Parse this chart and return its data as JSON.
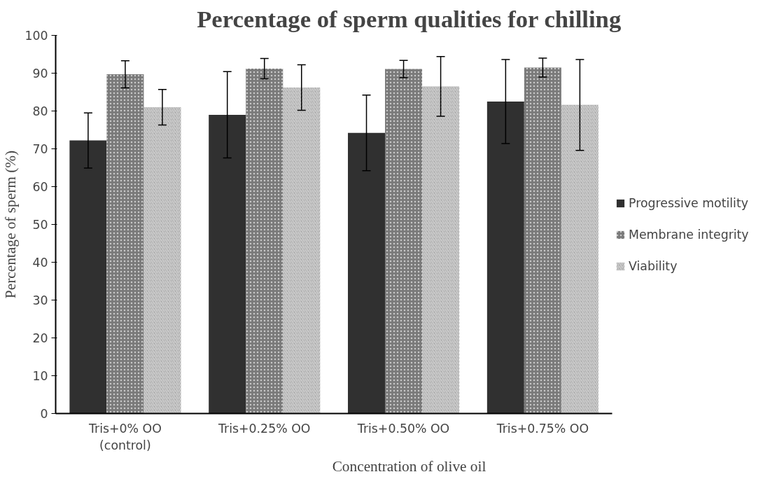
{
  "chart_data": {
    "type": "bar",
    "title": "Percentage of sperm qualities for chilling",
    "xlabel": "Concentration of olive oil",
    "ylabel": "Percentage of sperm (%)",
    "categories": [
      "Tris+0% OO\n(control)",
      "Tris+0.25% OO",
      "Tris+0.50% OO",
      "Tris+0.75% OO"
    ],
    "series": [
      {
        "name": "Progressive motility",
        "color": "#303030",
        "values": [
          72.2,
          79,
          74.2,
          82.5
        ],
        "errors": [
          7.3,
          11.4,
          10,
          11.1
        ]
      },
      {
        "name": "Membrane integrity",
        "color": "#7a7a7a",
        "values": [
          89.7,
          91.2,
          91.1,
          91.5
        ],
        "errors": [
          3.6,
          2.7,
          2.3,
          2.5
        ]
      },
      {
        "name": "Viability",
        "color": "#9a9a9a",
        "values": [
          81,
          86.2,
          86.5,
          81.6
        ],
        "errors": [
          4.7,
          6,
          7.9,
          12
        ]
      }
    ],
    "ylim": [
      0,
      100
    ],
    "yticks": [
      0,
      10,
      20,
      30,
      40,
      50,
      60,
      70,
      80,
      90,
      100
    ],
    "grid": false,
    "legend": "right"
  }
}
